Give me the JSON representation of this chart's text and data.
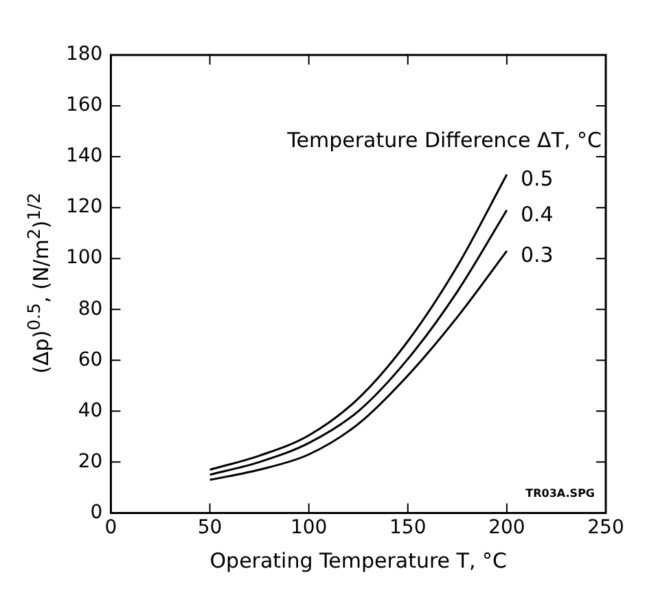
{
  "chart_data": {
    "type": "line",
    "xlabel": "Operating Temperature T, °C",
    "ylabel": "(Δp)$^{0.5}$, (N/m$^{2}$)$^{1/2}$",
    "legend_title": "Temperature Difference ΔT, °C",
    "x": [
      50,
      75,
      100,
      125,
      150,
      175,
      200
    ],
    "series": [
      {
        "name": "0.5",
        "color": "#000000",
        "values": [
          17,
          22.5,
          30.5,
          45,
          67.5,
          97,
          133
        ]
      },
      {
        "name": "0.4",
        "color": "#000000",
        "values": [
          15,
          20,
          27.5,
          40,
          60.5,
          87,
          119
        ]
      },
      {
        "name": "0.3",
        "color": "#000000",
        "values": [
          13,
          17,
          23,
          35,
          54,
          77,
          103
        ]
      }
    ],
    "xlim": [
      0,
      250
    ],
    "xticks": [
      0,
      50,
      100,
      150,
      200,
      250
    ],
    "ylim": [
      0,
      180
    ],
    "yticks": [
      0,
      20,
      40,
      60,
      80,
      100,
      120,
      140,
      160,
      180
    ],
    "grid": false,
    "legend": "top right",
    "marker": "none",
    "line_style": "solid",
    "annotations": [
      "TR03A.SPG"
    ]
  }
}
